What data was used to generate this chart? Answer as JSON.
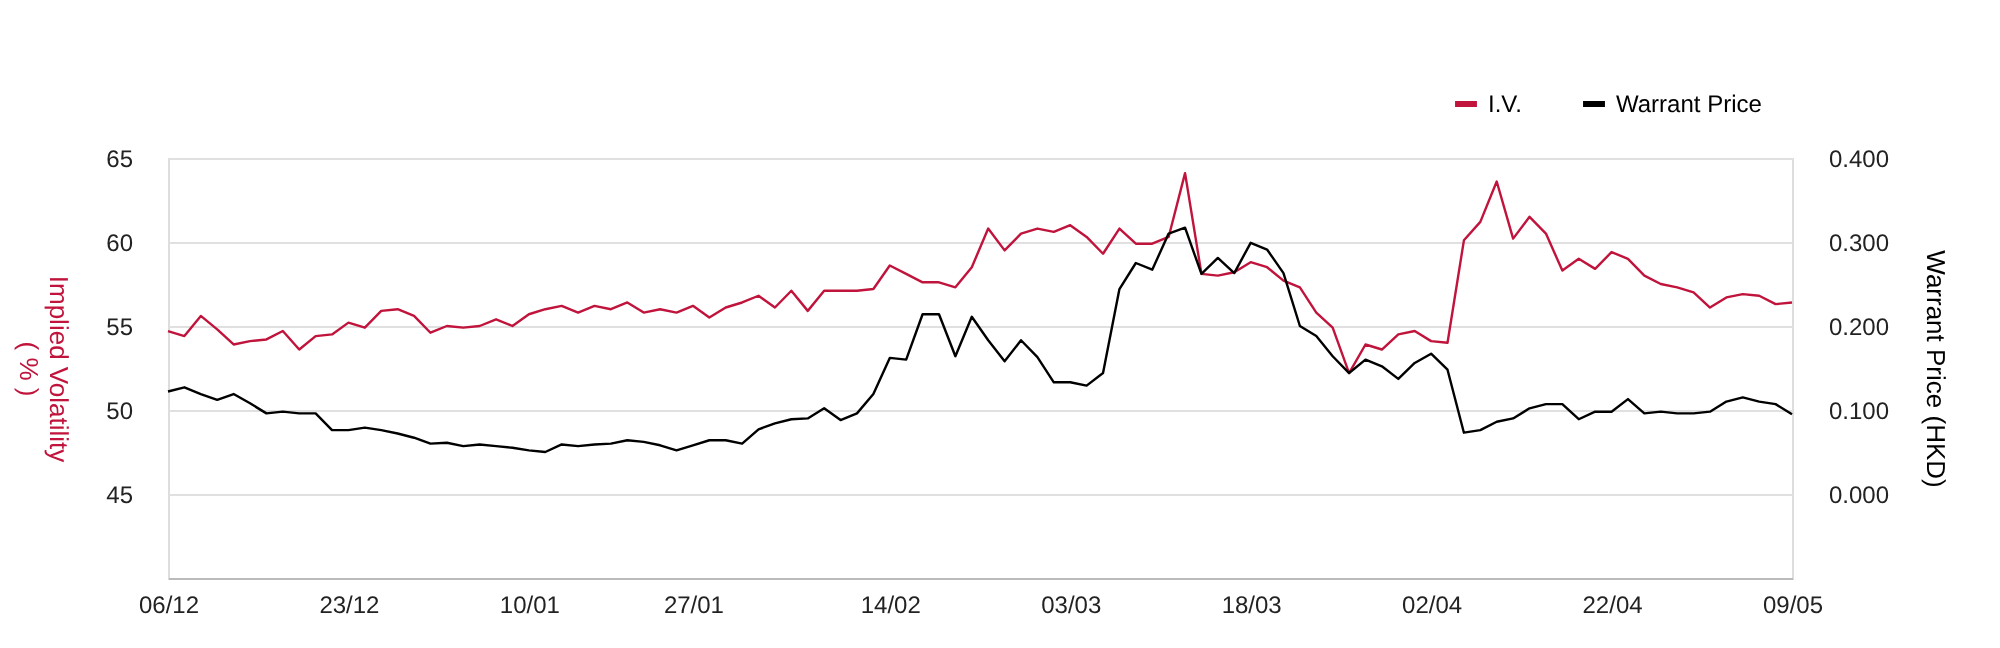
{
  "chart_data": {
    "type": "line",
    "categories": [
      "06/12",
      null,
      null,
      null,
      null,
      null,
      null,
      null,
      null,
      null,
      null,
      "23/12",
      null,
      null,
      null,
      null,
      null,
      null,
      null,
      null,
      null,
      null,
      "10/01",
      null,
      null,
      null,
      null,
      null,
      null,
      null,
      null,
      null,
      "27/01",
      null,
      null,
      null,
      null,
      null,
      null,
      null,
      null,
      null,
      null,
      null,
      "14/02",
      null,
      null,
      null,
      null,
      null,
      null,
      null,
      null,
      null,
      null,
      "03/03",
      null,
      null,
      null,
      null,
      null,
      null,
      null,
      null,
      null,
      null,
      "18/03",
      null,
      null,
      null,
      null,
      null,
      null,
      null,
      null,
      null,
      null,
      "02/04",
      null,
      null,
      null,
      null,
      null,
      null,
      null,
      null,
      null,
      null,
      "22/04",
      null,
      null,
      null,
      null,
      null,
      null,
      null,
      null,
      null,
      null,
      "09/05"
    ],
    "series": [
      {
        "name": "I.V.",
        "color": "#c0143c",
        "values": [
          54.7,
          54.4,
          55.6,
          54.8,
          53.9,
          54.1,
          54.2,
          54.7,
          53.6,
          54.4,
          54.5,
          55.2,
          54.9,
          55.9,
          56.0,
          55.6,
          54.6,
          55.0,
          54.9,
          55.0,
          55.4,
          55.0,
          55.7,
          56.0,
          56.2,
          55.8,
          56.2,
          56.0,
          56.4,
          55.8,
          56.0,
          55.8,
          56.2,
          55.5,
          56.1,
          56.4,
          56.8,
          56.1,
          57.1,
          55.9,
          57.1,
          57.1,
          57.1,
          57.2,
          58.6,
          58.1,
          57.6,
          57.6,
          57.3,
          58.5,
          60.8,
          59.5,
          60.5,
          60.8,
          60.6,
          61.0,
          60.3,
          59.3,
          60.8,
          59.9,
          59.9,
          60.3,
          64.1,
          58.1,
          58.0,
          58.2,
          58.8,
          58.5,
          57.7,
          57.3,
          55.8,
          54.9,
          52.2,
          53.9,
          53.6,
          54.5,
          54.7,
          54.1,
          54.0,
          60.1,
          61.2,
          63.6,
          60.2,
          61.5,
          60.5,
          58.3,
          59.0,
          58.4,
          59.4,
          59.0,
          58.0,
          57.5,
          57.3,
          57.0,
          56.1,
          56.7,
          56.9,
          56.8,
          56.3,
          56.4
        ]
      },
      {
        "name": "Warrant Price",
        "color": "#000000",
        "axis": "y2",
        "values": [
          0.122,
          0.127,
          0.119,
          0.112,
          0.119,
          0.108,
          0.096,
          0.098,
          0.096,
          0.096,
          0.076,
          0.076,
          0.079,
          0.076,
          0.072,
          0.067,
          0.06,
          0.061,
          0.057,
          0.059,
          0.057,
          0.055,
          0.052,
          0.05,
          0.059,
          0.057,
          0.059,
          0.06,
          0.064,
          0.062,
          0.058,
          0.052,
          0.058,
          0.064,
          0.064,
          0.06,
          0.077,
          0.084,
          0.089,
          0.09,
          0.102,
          0.088,
          0.096,
          0.119,
          0.162,
          0.16,
          0.214,
          0.214,
          0.164,
          0.211,
          0.183,
          0.158,
          0.183,
          0.163,
          0.133,
          0.133,
          0.129,
          0.144,
          0.244,
          0.275,
          0.267,
          0.31,
          0.317,
          0.262,
          0.281,
          0.263,
          0.299,
          0.291,
          0.263,
          0.2,
          0.188,
          0.164,
          0.144,
          0.16,
          0.152,
          0.137,
          0.156,
          0.167,
          0.148,
          0.073,
          0.076,
          0.086,
          0.09,
          0.102,
          0.107,
          0.107,
          0.089,
          0.098,
          0.098,
          0.113,
          0.096,
          0.098,
          0.096,
          0.096,
          0.098,
          0.11,
          0.115,
          0.11,
          0.107,
          0.095
        ]
      }
    ],
    "ylabel": "Implied Volatility\n( % )",
    "y2label": "Warrant Price (HKD)",
    "ylim": [
      40,
      65
    ],
    "yticks": [
      45,
      50,
      55,
      60,
      65
    ],
    "y2lim": [
      -0.1,
      0.4
    ],
    "y2ticks": [
      {
        "value": 0,
        "label": "0.000"
      },
      {
        "value": 0.1,
        "label": "0.100"
      },
      {
        "value": 0.2,
        "label": "0.200"
      },
      {
        "value": 0.3,
        "label": "0.300"
      },
      {
        "value": 0.4,
        "label": "0.400"
      }
    ],
    "grid": "y",
    "legend": "top right",
    "marker": "none",
    "line_style": "solid"
  }
}
